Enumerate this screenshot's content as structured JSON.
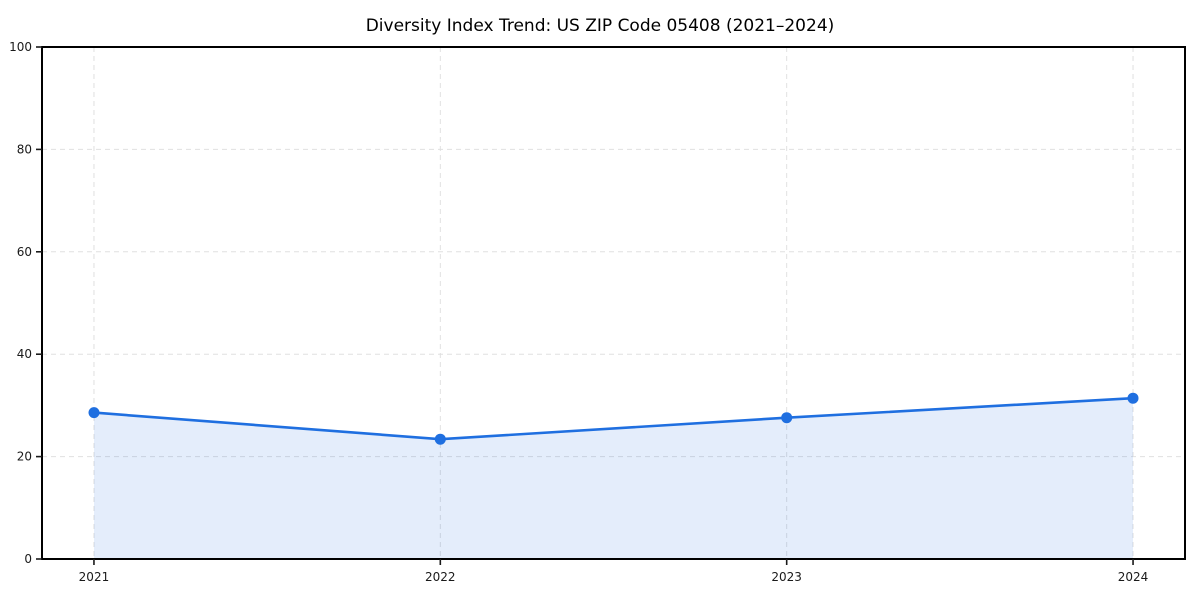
{
  "chart_data": {
    "type": "area",
    "title": "Diversity Index Trend: US ZIP Code 05408 (2021–2024)",
    "x": [
      2021,
      2022,
      2023,
      2024
    ],
    "values": [
      28.6,
      23.4,
      27.6,
      31.4
    ],
    "xlabel": "",
    "ylabel": "",
    "xlim": [
      2020.85,
      2024.15
    ],
    "ylim": [
      0,
      100
    ],
    "xticks": [
      2021,
      2022,
      2023,
      2024
    ],
    "yticks": [
      0,
      20,
      40,
      60,
      80,
      100
    ],
    "grid": true,
    "grid_style": "dashed",
    "legend": "none",
    "marker": "circle",
    "colors": {
      "line": "#1f6fe0",
      "marker": "#1f6fe0",
      "fill": "#1f6fe0",
      "fill_opacity": 0.12,
      "grid": "#e0e0e0",
      "spine": "#000000",
      "text": "#1a1a1a",
      "background": "#ffffff"
    }
  }
}
